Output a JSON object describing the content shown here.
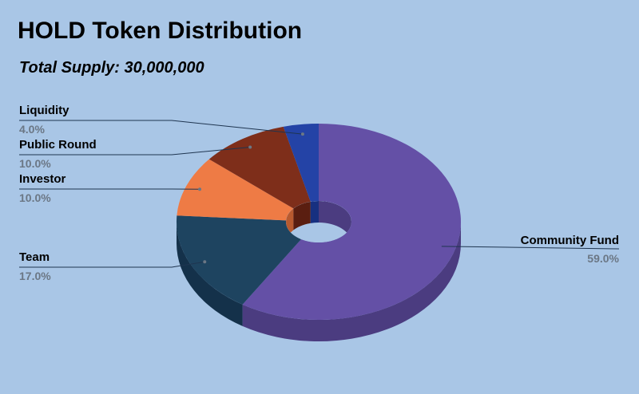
{
  "chart_data": {
    "type": "pie",
    "title": "HOLD Token Distribution",
    "subtitle": "Total Supply: 30,000,000",
    "slices": [
      {
        "label": "Community Fund",
        "value": 59.0,
        "value_label": "59.0%",
        "color": "#6450a6",
        "side_color": "#4b3c80"
      },
      {
        "label": "Team",
        "value": 17.0,
        "value_label": "17.0%",
        "color": "#1e4460",
        "side_color": "#14314a"
      },
      {
        "label": "Investor",
        "value": 10.0,
        "value_label": "10.0%",
        "color": "#ee7b45",
        "side_color": "#b85a2f"
      },
      {
        "label": "Public Round",
        "value": 10.0,
        "value_label": "10.0%",
        "color": "#7e2e1a",
        "side_color": "#5a1e10"
      },
      {
        "label": "Liquidity",
        "value": 4.0,
        "value_label": "4.0%",
        "color": "#2443a6",
        "side_color": "#173080"
      }
    ],
    "style": "3d-donut",
    "start": "top, clockwise",
    "legend": "none (callout labels)"
  },
  "colors": {
    "background": "#a9c6e6",
    "leader_line": "#1f3550"
  }
}
